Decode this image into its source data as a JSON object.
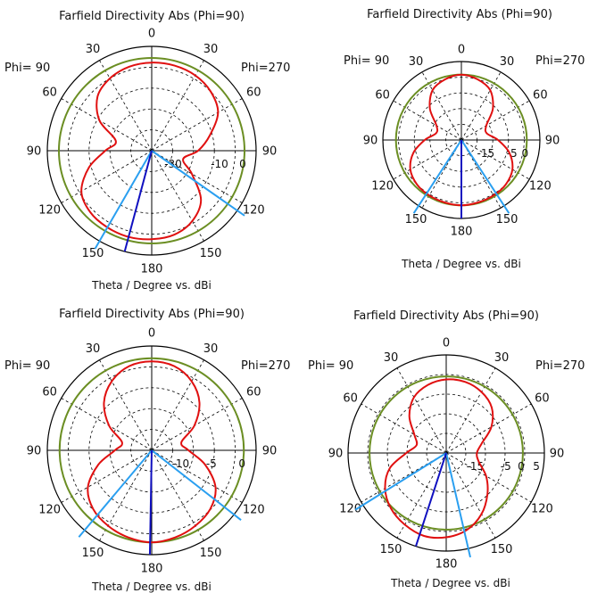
{
  "colors": {
    "pattern": "#e01010",
    "reference_ring": "#6b8e23",
    "main_lobe": "#1010c0",
    "beam_width": "#2a9ff0",
    "grid": "#000000"
  },
  "chart_data": [
    {
      "type": "polar",
      "title": "Farfield Directivity Abs (Phi=90)",
      "xlabel": "Theta / Degree vs. dBi",
      "left_label": "Phi= 90",
      "right_label": "Phi=270",
      "angle_labels": [
        "0",
        "30",
        "60",
        "90",
        "120",
        "150",
        "180",
        "150",
        "120",
        "90",
        "60",
        "30"
      ],
      "radial_labels": [
        "-30",
        "-10",
        "0"
      ],
      "radial_label_values": [
        -30,
        -10,
        0
      ],
      "rmin": -40,
      "rmax": 5,
      "reference_ring_dbi": 0,
      "main_lobe_direction_deg": 165,
      "beam_lines_deg": [
        150,
        235
      ],
      "theta": [
        0,
        15,
        30,
        45,
        60,
        75,
        90,
        105,
        120,
        135,
        150,
        165,
        180,
        195,
        210,
        225,
        240,
        255,
        270,
        285,
        300,
        315,
        330,
        345
      ],
      "directivity_dbi": [
        -2,
        -2.5,
        -4,
        -7,
        -14,
        -24,
        -20,
        -12,
        -5,
        -2.5,
        -1.8,
        -1.5,
        -1.8,
        -2.5,
        -5,
        -10,
        -20,
        -26,
        -20,
        -14,
        -7,
        -4,
        -2.5,
        -2
      ]
    },
    {
      "type": "polar",
      "title": "Farfield Directivity Abs (Phi=90)",
      "xlabel": "Theta / Degree vs. dBi",
      "left_label": "Phi= 90",
      "right_label": "Phi=270",
      "angle_labels": [
        "0",
        "30",
        "60",
        "90",
        "120",
        "150",
        "180",
        "150",
        "120",
        "90",
        "60",
        "30"
      ],
      "radial_labels": [
        "-15",
        "-5",
        "0"
      ],
      "radial_label_values": [
        -15,
        -5,
        0
      ],
      "rmin": -25,
      "rmax": 5,
      "reference_ring_dbi": 0,
      "main_lobe_direction_deg": 180,
      "beam_lines_deg": [
        147,
        213
      ],
      "theta": [
        0,
        15,
        30,
        45,
        60,
        75,
        90,
        105,
        120,
        135,
        150,
        165,
        180,
        195,
        210,
        225,
        240,
        255,
        270,
        285,
        300,
        315,
        330,
        345
      ],
      "directivity_dbi": [
        0,
        -1,
        -3,
        -8,
        -14,
        -15,
        -11,
        -6,
        -2.5,
        -1,
        -0.5,
        -0.3,
        0,
        -0.3,
        -0.5,
        -1,
        -2.5,
        -6,
        -11,
        -15,
        -14,
        -8,
        -3,
        -1
      ]
    },
    {
      "type": "polar",
      "title": "Farfield Directivity Abs (Phi=90)",
      "xlabel": "Theta / Degree vs. dBi",
      "left_label": "Phi= 90",
      "right_label": "Phi=270",
      "angle_labels": [
        "0",
        "30",
        "60",
        "90",
        "120",
        "150",
        "180",
        "150",
        "120",
        "90",
        "60",
        "30"
      ],
      "radial_labels": [
        "-10",
        "-5",
        "0"
      ],
      "radial_label_values": [
        -10,
        -5,
        0
      ],
      "rmin": -15,
      "rmax": 2,
      "reference_ring_dbi": 0,
      "main_lobe_direction_deg": 179,
      "beam_lines_deg": [
        140,
        232
      ],
      "theta": [
        0,
        15,
        30,
        45,
        60,
        75,
        90,
        105,
        120,
        135,
        150,
        165,
        180,
        195,
        210,
        225,
        240,
        255,
        270,
        285,
        300,
        315,
        330,
        345
      ],
      "directivity_dbi": [
        -0.5,
        -0.8,
        -2,
        -4,
        -7,
        -10,
        -9,
        -6,
        -3,
        -1.5,
        -0.8,
        -0.3,
        0,
        -0.3,
        -0.8,
        -1.5,
        -3,
        -6,
        -9,
        -10,
        -7,
        -4,
        -2,
        -0.8
      ]
    },
    {
      "type": "polar",
      "title": "Farfield Directivity Abs (Phi=90)",
      "xlabel": "Theta / Degree vs. dBi",
      "left_label": "Phi= 90",
      "right_label": "Phi=270",
      "angle_labels": [
        "0",
        "30",
        "60",
        "90",
        "120",
        "150",
        "180",
        "150",
        "120",
        "90",
        "60",
        "30"
      ],
      "radial_labels": [
        "-15",
        "-5",
        "0",
        "5"
      ],
      "radial_label_values": [
        -15,
        -5,
        0,
        5
      ],
      "rmin": -25,
      "rmax": 7,
      "reference_ring_dbi": 0,
      "main_lobe_direction_deg": 162,
      "beam_lines_deg": [
        122,
        193
      ],
      "theta": [
        0,
        15,
        30,
        45,
        60,
        75,
        90,
        105,
        120,
        135,
        150,
        165,
        180,
        195,
        210,
        225,
        240,
        255,
        270,
        285,
        300,
        315,
        330,
        345
      ],
      "directivity_dbi": [
        -1,
        -2,
        -4,
        -8,
        -13,
        -15,
        -12,
        -6,
        -2,
        0.5,
        2,
        3,
        2.5,
        1,
        -2,
        -6,
        -10,
        -14,
        -15,
        -13,
        -8,
        -4,
        -2,
        -1
      ]
    }
  ]
}
